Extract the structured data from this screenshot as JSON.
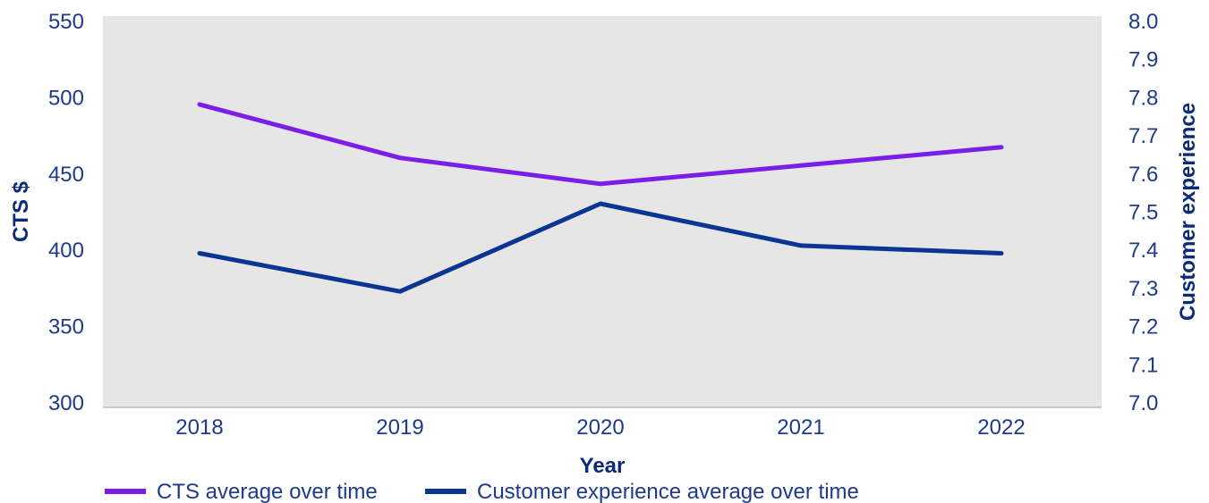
{
  "chart_data": {
    "type": "line",
    "categories": [
      "2018",
      "2019",
      "2020",
      "2021",
      "2022"
    ],
    "xlabel": "Year",
    "ylabel": "CTS $",
    "y2label": "Customer experience",
    "ylim": [
      300,
      550
    ],
    "y2lim": [
      7.0,
      8.0
    ],
    "yticks": [
      "300",
      "350",
      "400",
      "450",
      "500",
      "550"
    ],
    "y2ticks": [
      "7.0",
      "7.1",
      "7.2",
      "7.3",
      "7.4",
      "7.5",
      "7.6",
      "7.7",
      "7.8",
      "7.9",
      "8.0"
    ],
    "grid": false,
    "legend_position": "bottom-left",
    "series": [
      {
        "name": "CTS average over time",
        "axis": "left",
        "color": "#7a1ee8",
        "values": [
          495,
          460,
          443,
          455,
          467
        ]
      },
      {
        "name": "Customer experience average over time",
        "axis": "right",
        "color": "#0b3593",
        "values": [
          7.39,
          7.29,
          7.52,
          7.41,
          7.39
        ]
      }
    ]
  },
  "colors": {
    "plot_background": "#e6e6e6",
    "text": "#1e3a8a",
    "axis_title": "#0b2a7a"
  }
}
